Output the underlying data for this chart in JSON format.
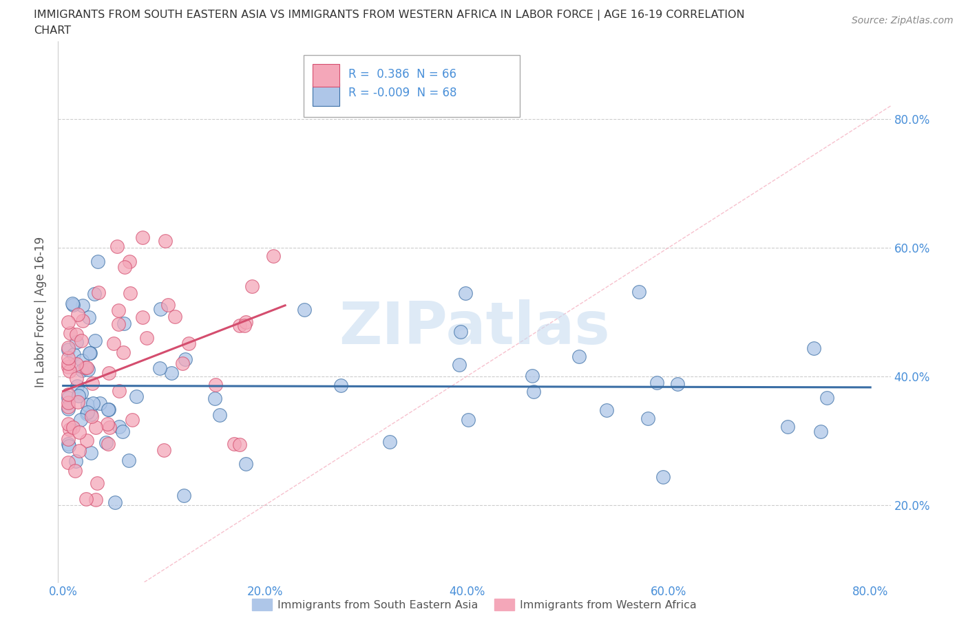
{
  "title_line1": "IMMIGRANTS FROM SOUTH EASTERN ASIA VS IMMIGRANTS FROM WESTERN AFRICA IN LABOR FORCE | AGE 16-19 CORRELATION",
  "title_line2": "CHART",
  "source_text": "Source: ZipAtlas.com",
  "ylabel": "In Labor Force | Age 16-19",
  "xlim": [
    -0.005,
    0.82
  ],
  "ylim": [
    0.08,
    0.92
  ],
  "x_ticks": [
    0.0,
    0.2,
    0.4,
    0.6,
    0.8
  ],
  "x_tick_labels": [
    "0.0%",
    "20.0%",
    "40.0%",
    "60.0%",
    "80.0%"
  ],
  "y_ticks": [
    0.2,
    0.4,
    0.6,
    0.8
  ],
  "y_tick_labels": [
    "20.0%",
    "40.0%",
    "60.0%",
    "80.0%"
  ],
  "watermark": "ZIPatlas",
  "color_blue": "#AEC6E8",
  "color_pink": "#F4A7B9",
  "line_blue": "#3A6EA5",
  "line_pink": "#D44D6E",
  "line_dashed_color": "#F4A7B9",
  "background_color": "#ffffff",
  "grid_color": "#cccccc",
  "tick_color": "#4A90D9",
  "blue_trend_y_at_x0": 0.375,
  "blue_trend_y_at_x1": 0.37,
  "pink_trend_y_at_x0": 0.335,
  "pink_trend_y_at_x1": 0.5,
  "pink_trend_x1": 0.22,
  "legend_text_color": "#4A90D9"
}
